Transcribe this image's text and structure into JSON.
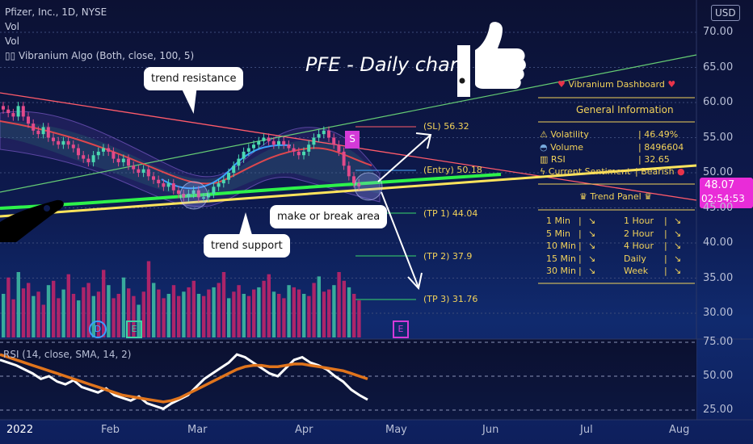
{
  "header": {
    "symbol_line": "Pfizer, Inc., 1D, NYSE",
    "vol1": "Vol",
    "vol2": "Vol",
    "indicator": "Vibranium Algo (Both, close, 100, 5)",
    "currency": "USD"
  },
  "title": "PFE - Daily chart",
  "callouts": {
    "trend_resistance": "trend resistance",
    "trend_support": "trend support",
    "make_or_break": "make or break area"
  },
  "levels": {
    "sl": "(SL) 56.32",
    "entry": "(Entry) 50.18",
    "tp1": "(TP 1) 44.04",
    "tp2": "(TP 2) 37.9",
    "tp3": "(TP 3) 31.76"
  },
  "price_tag": {
    "price": "48.07",
    "countdown": "02:54:53"
  },
  "markers": {
    "s": "S",
    "d": "D",
    "e1": "E",
    "e2": "E"
  },
  "dashboard": {
    "title": "Vibranium Dashboard",
    "general": "General Information",
    "volatility_label": "Volatility",
    "volatility_value": "| 46.49%",
    "volume_label": "Volume",
    "volume_value": "| 8496604",
    "rsi_label": "RSI",
    "rsi_value": "| 32.65",
    "sentiment_label": "Current Sentiment",
    "sentiment_value": "| Bearish",
    "trend_panel": "Trend Panel",
    "trend_rows": [
      {
        "left": "1 Min",
        "right": "1 Hour"
      },
      {
        "left": "5 Min",
        "right": "2 Hour"
      },
      {
        "left": "10 Min",
        "right": "4 Hour"
      },
      {
        "left": "15 Min",
        "right": "Daily"
      },
      {
        "left": "30 Min",
        "right": "Week"
      }
    ]
  },
  "rsi_panel": {
    "label": "RSI (14, close, SMA, 14, 2)"
  },
  "chart_data": [
    {
      "type": "line",
      "title": "Pfizer, Inc., 1D, NYSE",
      "ylabel": "USD",
      "ylim": [
        25,
        72
      ],
      "y_ticks": [
        "70.00",
        "65.00",
        "60.00",
        "55.00",
        "50.00",
        "45.00",
        "40.00",
        "35.00",
        "30.00"
      ],
      "x_ticks": [
        "2022",
        "Feb",
        "Mar",
        "Apr",
        "May",
        "Jun",
        "Jul",
        "Aug"
      ],
      "series": [
        {
          "name": "close",
          "values": [
            59,
            58.5,
            58,
            59.5,
            58,
            57,
            56,
            55.5,
            56.5,
            55,
            54.5,
            54,
            54.5,
            54,
            53.5,
            52.5,
            52,
            51.5,
            52.5,
            53,
            53.5,
            53,
            52,
            51.5,
            52,
            51,
            50.5,
            50,
            50.5,
            49.5,
            49,
            48.5,
            48,
            48.5,
            47.5,
            47,
            46.5,
            47,
            47.5,
            46.5,
            46.5,
            47,
            48,
            48.5,
            49,
            50,
            51,
            52,
            53,
            53.5,
            54,
            54.5,
            55,
            54.5,
            54,
            54.5,
            54,
            53.5,
            53,
            52.5,
            53,
            54,
            55,
            55.5,
            56,
            55,
            54,
            53,
            51,
            49.5,
            48.5,
            48.07
          ]
        }
      ]
    },
    {
      "type": "bar",
      "title": "Vol",
      "note": "volume bars, relative",
      "values": [
        40,
        55,
        35,
        60,
        45,
        50,
        38,
        42,
        30,
        48,
        52,
        36,
        44,
        58,
        40,
        34,
        46,
        50,
        38,
        42,
        62,
        48,
        36,
        40,
        55,
        45,
        38,
        30,
        42,
        70,
        50,
        44,
        36,
        40,
        48,
        38,
        42,
        46,
        52,
        40,
        38,
        44,
        46,
        50,
        60,
        36,
        42,
        48,
        40,
        38,
        44,
        46,
        52,
        58,
        42,
        40,
        36,
        48,
        46,
        44,
        40,
        38,
        50,
        56,
        42,
        44,
        48,
        60,
        52,
        46,
        40,
        34
      ]
    },
    {
      "type": "line",
      "title": "RSI (14, close, SMA, 14, 2)",
      "ylim": [
        20,
        75
      ],
      "y_ticks": [
        "75.00",
        "50.00",
        "25.00"
      ],
      "series": [
        {
          "name": "RSI",
          "values": [
            62,
            60,
            58,
            55,
            52,
            48,
            50,
            46,
            44,
            47,
            42,
            40,
            38,
            41,
            36,
            34,
            32,
            35,
            30,
            28,
            26,
            30,
            33,
            36,
            42,
            48,
            52,
            56,
            60,
            66,
            64,
            60,
            56,
            52,
            50,
            56,
            62,
            64,
            60,
            58,
            55,
            50,
            46,
            40,
            36,
            32.65
          ]
        },
        {
          "name": "SMA",
          "values": [
            66,
            64,
            62,
            60,
            58,
            56,
            54,
            52,
            50,
            48,
            46,
            44,
            42,
            40,
            38,
            36,
            35,
            34,
            33,
            32,
            31,
            32,
            34,
            37,
            40,
            43,
            46,
            49,
            52,
            55,
            57,
            58,
            58,
            57,
            57,
            58,
            59,
            59,
            58,
            57,
            56,
            55,
            54,
            52,
            50,
            48
          ]
        }
      ]
    }
  ]
}
